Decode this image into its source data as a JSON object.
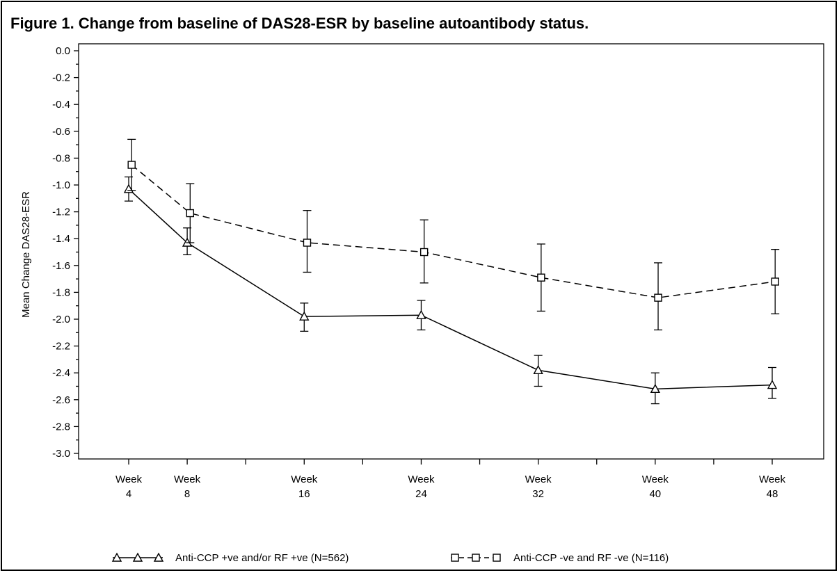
{
  "figure": {
    "title": "Figure 1. Change from baseline of DAS28-ESR by baseline autoantibody status."
  },
  "chart_data": {
    "type": "line",
    "title": "Figure 1. Change from baseline of DAS28-ESR by baseline autoantibody status.",
    "xlabel": "",
    "ylabel": "Mean Change DAS28-ESR",
    "x": [
      4,
      8,
      16,
      24,
      32,
      40,
      48
    ],
    "x_tick_labels": [
      {
        "line1": "Week",
        "line2": "4"
      },
      {
        "line1": "Week",
        "line2": "8"
      },
      {
        "line1": "Week",
        "line2": "16"
      },
      {
        "line1": "Week",
        "line2": "24"
      },
      {
        "line1": "Week",
        "line2": "32"
      },
      {
        "line1": "Week",
        "line2": "40"
      },
      {
        "line1": "Week",
        "line2": "48"
      }
    ],
    "xlim": [
      2,
      52
    ],
    "ylim": [
      -3.0,
      0.0
    ],
    "y_ticks": [
      "0.0",
      "-0.2",
      "-0.4",
      "-0.6",
      "-0.8",
      "-1.0",
      "-1.2",
      "-1.4",
      "-1.6",
      "-1.8",
      "-2.0",
      "-2.2",
      "-2.4",
      "-2.6",
      "-2.8",
      "-3.0"
    ],
    "grid": false,
    "legend_position": "bottom",
    "series": [
      {
        "name": "Anti-CCP +ve and/or RF +ve (N=562)",
        "marker": "triangle",
        "line_style": "solid",
        "color": "#000000",
        "x_offset": 0,
        "values": [
          -1.03,
          -1.43,
          -1.98,
          -1.97,
          -2.38,
          -2.52,
          -2.49
        ],
        "error_low": [
          -1.12,
          -1.52,
          -2.09,
          -2.08,
          -2.5,
          -2.63,
          -2.59
        ],
        "error_high": [
          -0.94,
          -1.32,
          -1.88,
          -1.86,
          -2.27,
          -2.4,
          -2.36
        ]
      },
      {
        "name": "Anti-CCP -ve and RF -ve (N=116)",
        "marker": "square",
        "line_style": "dashed",
        "color": "#000000",
        "x_offset": 0.2,
        "values": [
          -0.85,
          -1.21,
          -1.43,
          -1.5,
          -1.69,
          -1.84,
          -1.72
        ],
        "error_low": [
          -1.04,
          -1.43,
          -1.65,
          -1.73,
          -1.94,
          -2.08,
          -1.96
        ],
        "error_high": [
          -0.66,
          -0.99,
          -1.19,
          -1.26,
          -1.44,
          -1.58,
          -1.48
        ]
      }
    ]
  }
}
